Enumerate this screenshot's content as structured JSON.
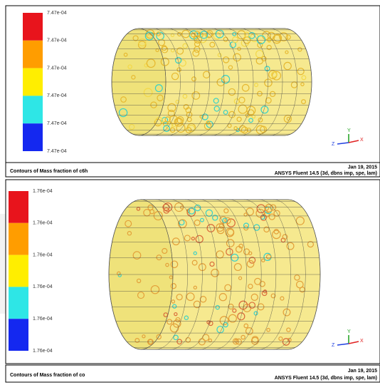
{
  "panels": [
    {
      "legend_labels": [
        "7.47e-04",
        "7.47e-04",
        "7.47e-04",
        "7.47e-04",
        "7.47e-04",
        "7.47e-04"
      ],
      "caption": "Contours of Mass fraction of c6h",
      "date": "Jan 19, 2015",
      "software": "ANSYS Fluent 14.5 (3d, dbns imp, spe, lam)",
      "triad": {
        "y": "Y",
        "z": "Z",
        "x": "X"
      }
    },
    {
      "legend_labels": [
        "1.76e-04",
        "1.76e-04",
        "1.76e-04",
        "1.76e-04",
        "1.76e-04",
        "1.76e-04"
      ],
      "caption": "Contours of Mass fraction of co",
      "date": "Jan 19, 2015",
      "software": "ANSYS Fluent 14.5 (3d, dbns imp, spe, lam)",
      "triad": {
        "y": "Y",
        "z": "Z",
        "x": "X"
      }
    }
  ]
}
